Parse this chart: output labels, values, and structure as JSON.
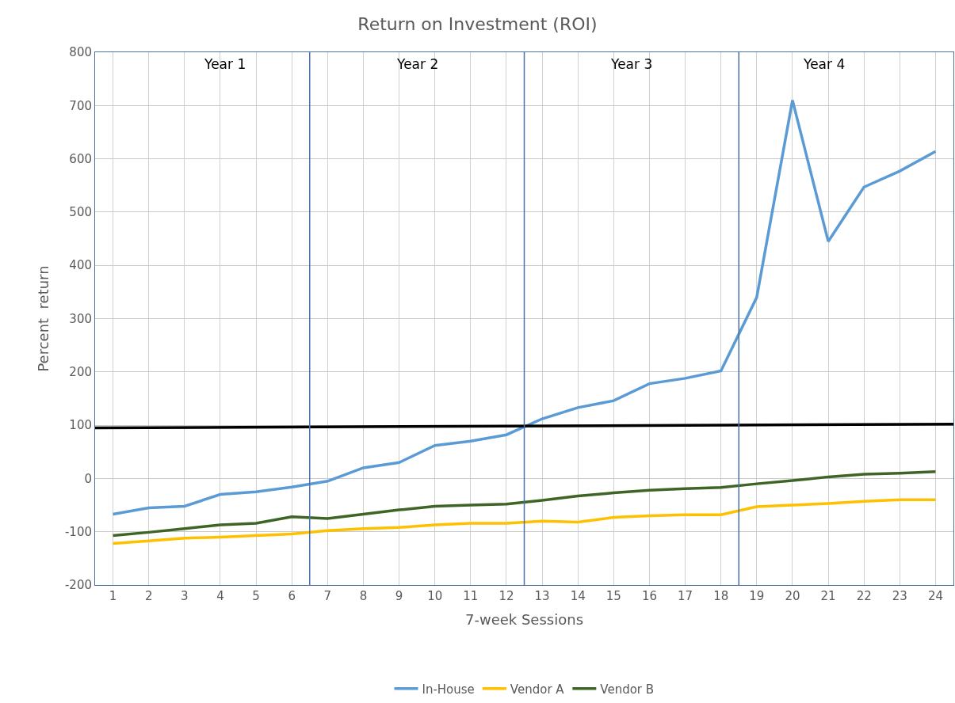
{
  "chart_data": {
    "type": "line",
    "title": "Return on Investment (ROI)",
    "xlabel": "7-week Sessions",
    "ylabel": "Percent  return",
    "x": [
      1,
      2,
      3,
      4,
      5,
      6,
      7,
      8,
      9,
      10,
      11,
      12,
      13,
      14,
      15,
      16,
      17,
      18,
      19,
      20,
      21,
      22,
      23,
      24
    ],
    "xlim": [
      0.5,
      24.5
    ],
    "xticks": [
      1,
      2,
      3,
      4,
      5,
      6,
      7,
      8,
      9,
      10,
      11,
      12,
      13,
      14,
      15,
      16,
      17,
      18,
      19,
      20,
      21,
      22,
      23,
      24
    ],
    "ylim": [
      -200,
      800
    ],
    "yticks": [
      -200,
      -100,
      0,
      100,
      200,
      300,
      400,
      500,
      600,
      700,
      800
    ],
    "series": [
      {
        "name": "In-House",
        "color": "#5b9bd5",
        "values": [
          -67,
          -55,
          -52,
          -30,
          -25,
          -16,
          -5,
          20,
          30,
          62,
          70,
          82,
          112,
          133,
          146,
          178,
          188,
          202,
          340,
          710,
          445,
          547,
          577,
          614
        ]
      },
      {
        "name": "Vendor A",
        "color": "#ffc000",
        "values": [
          -122,
          -117,
          -112,
          -110,
          -107,
          -104,
          -98,
          -94,
          -92,
          -87,
          -84,
          -84,
          -80,
          -82,
          -73,
          -70,
          -68,
          -68,
          -53,
          -50,
          -47,
          -43,
          -40,
          -40
        ]
      },
      {
        "name": "Vendor B",
        "color": "#3f6526",
        "values": [
          -107,
          -101,
          -94,
          -87,
          -84,
          -72,
          -75,
          -67,
          -59,
          -52,
          -50,
          -48,
          -41,
          -33,
          -27,
          -22,
          -19,
          -17,
          -10,
          -4,
          3,
          8,
          10,
          13
        ]
      },
      {
        "color": "#000000",
        "x": [
          0.5,
          24.5
        ],
        "values": [
          95,
          102
        ]
      }
    ],
    "ref_lines": [
      {
        "axis": "x",
        "value": 6.5,
        "color": "#4a72a8"
      },
      {
        "axis": "x",
        "value": 12.5,
        "color": "#4a72a8"
      },
      {
        "axis": "x",
        "value": 18.5,
        "color": "#4a72a8"
      }
    ],
    "annotations": [
      "Year 1",
      "Year 2",
      "Year 3",
      "Year 4"
    ],
    "grid": true,
    "legend": "bottom",
    "marker": "none",
    "line_style": "solid"
  }
}
